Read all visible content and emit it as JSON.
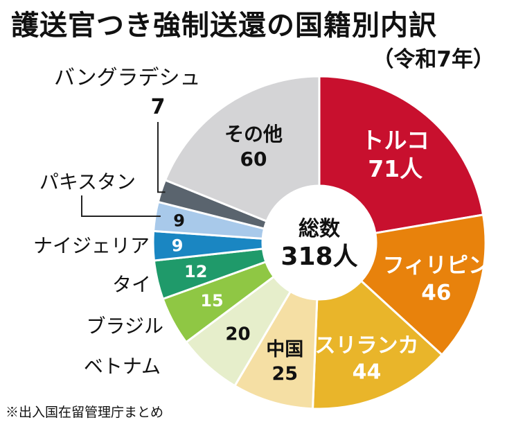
{
  "title": "護送官つき強制送還の国籍別内訳",
  "subtitle": "（令和7年）",
  "source": "※出入国在留管理庁まとめ",
  "center": {
    "label": "総数",
    "value": "318人"
  },
  "chart_data": {
    "type": "pie",
    "title": "護送官つき強制送還の国籍別内訳",
    "subtitle": "（令和7年）",
    "total": 318,
    "slices": [
      {
        "name": "トルコ",
        "value": 71,
        "value_label": "71人",
        "color": "#c8102e",
        "text_color": "#ffffff"
      },
      {
        "name": "フィリピン",
        "value": 46,
        "value_label": "46",
        "color": "#e8820c",
        "text_color": "#ffffff"
      },
      {
        "name": "スリランカ",
        "value": 44,
        "value_label": "44",
        "color": "#e9b52a",
        "text_color": "#ffffff"
      },
      {
        "name": "中国",
        "value": 25,
        "value_label": "25",
        "color": "#f5dfa4",
        "text_color": "#111111"
      },
      {
        "name": "ベトナム",
        "value": 20,
        "value_label": "20",
        "color": "#e6eecb",
        "text_color": "#111111"
      },
      {
        "name": "ブラジル",
        "value": 15,
        "value_label": "15",
        "color": "#8fc744",
        "text_color": "#ffffff"
      },
      {
        "name": "タイ",
        "value": 12,
        "value_label": "12",
        "color": "#1f9a6a",
        "text_color": "#ffffff"
      },
      {
        "name": "ナイジェリア",
        "value": 9,
        "value_label": "9",
        "color": "#1a86c2",
        "text_color": "#ffffff"
      },
      {
        "name": "パキスタン",
        "value": 9,
        "value_label": "9",
        "color": "#a8c9ea",
        "text_color": "#111111"
      },
      {
        "name": "バングラデシュ",
        "value": 7,
        "value_label": "7",
        "color": "#5a646e",
        "text_color": "#111111"
      },
      {
        "name": "その他",
        "value": 60,
        "value_label": "60",
        "color": "#d4d4d6",
        "text_color": "#111111"
      }
    ]
  }
}
